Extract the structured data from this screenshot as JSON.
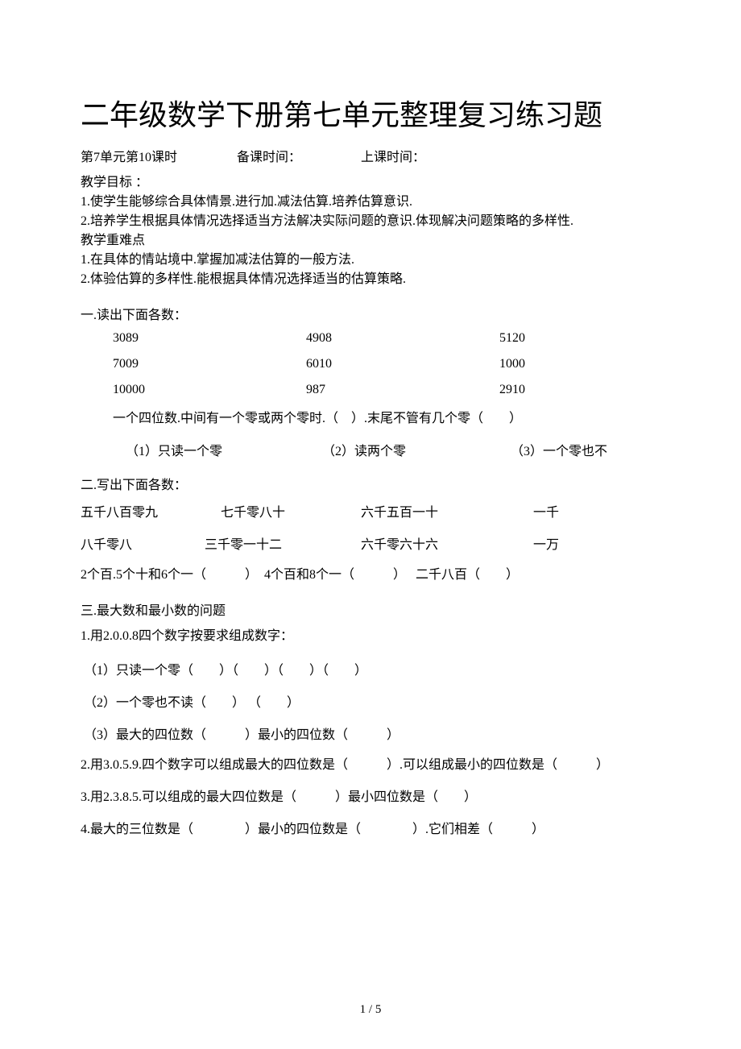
{
  "title": "二年级数学下册第七单元整理复习练习题",
  "meta": {
    "lesson": "第7单元第10课时",
    "prep_label": "备课时间：",
    "class_label": "上课时间："
  },
  "objectives": {
    "heading": "教学目标 ：",
    "item1": "1.使学生能够综合具体情景.进行加.减法估算.培养估算意识.",
    "item2": "2.培养学生根据具体情况选择适当方法解决实际问题的意识.体现解决问题策略的多样性.",
    "diff_heading": "教学重难点",
    "diff1": "1.在具体的情站境中.掌握加减法估算的一般方法.",
    "diff2": "2.体验估算的多样性.能根据具体情况选择适当的估算策略."
  },
  "section1": {
    "heading": "一.读出下面各数：",
    "row1": {
      "a": "3089",
      "b": "4908",
      "c": "5120"
    },
    "row2": {
      "a": "7009",
      "b": "6010",
      "c": "1000"
    },
    "row3": {
      "a": "10000",
      "b": "987",
      "c": "2910"
    },
    "rule": "一个四位数.中间有一个零或两个零时.（　）.末尾不管有几个零（　　）",
    "opt1": "（1）只读一个零",
    "opt2": "（2）读两个零",
    "opt3": "（3）一个零也不"
  },
  "section2": {
    "heading": "二.写出下面各数：",
    "row1": {
      "a": "五千八百零九",
      "b": "七千零八十",
      "c": "六千五百一十",
      "d": "一千"
    },
    "row2": {
      "a": "八千零八",
      "b": "三千零一十二",
      "c": "六千零六十六",
      "d": "一万"
    },
    "line3": "2个百.5个十和6个一（　　　）　4个百和8个一（　　　）　 二千八百（　　）"
  },
  "section3": {
    "heading": "三.最大数和最小数的问题",
    "q1": "1.用2.0.0.8四个数字按要求组成数字：",
    "q1a": "（1）只读一个零（　　）（　　）（　　）（　　）",
    "q1b": "（2）一个零也不读（　　） （　　）",
    "q1c": "（3）最大的四位数（　　　）最小的四位数（　　　）",
    "q2": " 2.用3.0.5.9.四个数字可以组成最大的四位数是（　　　）.可以组成最小的四位数是（　　　）",
    "q3": "3.用2.3.8.5.可以组成的最大四位数是（　　　）最小四位数是（　　）",
    "q4": "4.最大的三位数是（　　　　）最小的四位数是（　　　　）.它们相差（　　　）"
  },
  "page_number": "1 / 5"
}
